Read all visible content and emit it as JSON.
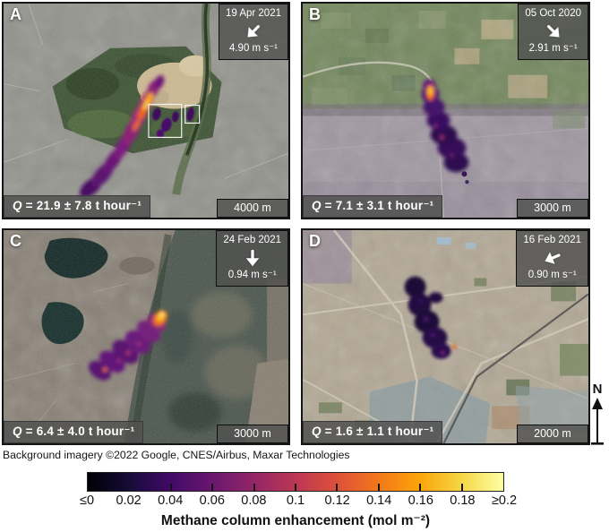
{
  "figure": {
    "attribution": "Background imagery ©2022 Google, CNES/Airbus, Maxar Technologies",
    "north": {
      "label": "N"
    }
  },
  "panels": [
    {
      "label": "A",
      "date": "19 Apr 2021",
      "wind_speed": "4.90 m s⁻¹",
      "wind_dir_deg": 135,
      "q_symbol": "Q",
      "q_rest": " = 21.9 ± 7.8 t hour⁻¹",
      "scale": "4000 m"
    },
    {
      "label": "B",
      "date": "05 Oct 2020",
      "wind_speed": "2.91 m s⁻¹",
      "wind_dir_deg": 45,
      "q_symbol": "Q",
      "q_rest": " = 7.1 ± 3.1 t hour⁻¹",
      "scale": "3000 m"
    },
    {
      "label": "C",
      "date": "24 Feb 2021",
      "wind_speed": "0.94 m s⁻¹",
      "wind_dir_deg": 90,
      "q_symbol": "Q",
      "q_rest": " = 6.4 ± 4.0 t hour⁻¹",
      "scale": "3000 m"
    },
    {
      "label": "D",
      "date": "16 Feb 2021",
      "wind_speed": "0.90 m s⁻¹",
      "wind_dir_deg": 157,
      "q_symbol": "Q",
      "q_rest": " = 1.6 ± 1.1 t hour⁻¹",
      "scale": "2000 m"
    }
  ],
  "colorbar": {
    "title": "Methane column enhancement (mol m⁻²)",
    "tick_labels": [
      "≤0",
      "0.02",
      "0.04",
      "0.06",
      "0.08",
      "0.1",
      "0.12",
      "0.14",
      "0.16",
      "0.18",
      "≥0.2"
    ],
    "gradient_stops": [
      "#000004",
      "#160b39",
      "#420a68",
      "#6a176e",
      "#932667",
      "#bc3754",
      "#dd513a",
      "#f37819",
      "#fca50a",
      "#f6d746",
      "#fcffa4"
    ]
  }
}
